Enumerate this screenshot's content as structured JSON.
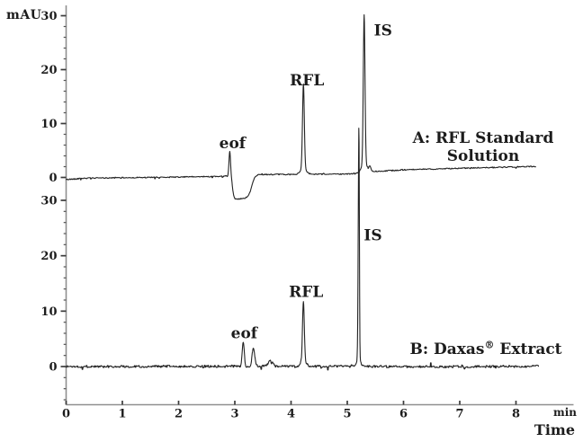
{
  "chart_data": {
    "type": "line",
    "description": "Stacked capillary electrophoresis electropherograms",
    "x": {
      "label": "Time",
      "unit": "min",
      "ticks": [
        0,
        1,
        2,
        3,
        4,
        5,
        6,
        7,
        8
      ],
      "range": [
        0,
        9
      ]
    },
    "y": {
      "label": "mAU",
      "ticks": [
        0,
        10,
        20,
        30
      ],
      "minor_step": 2,
      "range": [
        0,
        30
      ]
    },
    "panels": [
      {
        "name": "A",
        "annotation_line1": "A: RFL Standard",
        "annotation_line2": "Solution",
        "trace_end_min": 8.35,
        "noise_mau": 0.09,
        "baseline": [
          [
            0,
            -0.4
          ],
          [
            0.3,
            -0.15
          ],
          [
            1.5,
            0.0
          ],
          [
            2.5,
            0.15
          ],
          [
            2.9,
            0.2
          ],
          [
            3.35,
            0.55
          ],
          [
            4.0,
            0.55
          ],
          [
            4.6,
            0.6
          ],
          [
            5.1,
            0.65
          ],
          [
            5.45,
            1.1
          ],
          [
            6.0,
            1.4
          ],
          [
            7.0,
            1.7
          ],
          [
            8.0,
            1.95
          ],
          [
            8.35,
            2.05
          ]
        ],
        "dip": {
          "start_min": 2.96,
          "end_min": 3.3,
          "depth_mau": 4.3
        },
        "peaks": [
          {
            "label": "eof",
            "time_min": 2.91,
            "height_mau": 4.7,
            "width_min": 0.014,
            "label_dx": 3,
            "label_dy": -3
          },
          {
            "label": "RFL",
            "time_min": 4.22,
            "height_mau": 15.5,
            "width_min": 0.016,
            "foot_mau": 1.2,
            "foot_width_min": 0.05,
            "label_dx": 4,
            "label_dy": -6
          },
          {
            "label": "IS",
            "time_min": 5.3,
            "height_mau": 27.4,
            "width_min": 0.015,
            "foot_mau": 1.8,
            "foot_width_min": 0.045,
            "label_dx": 21,
            "label_dy": 12
          },
          {
            "label": "",
            "time_min": 5.4,
            "height_mau": 1.0,
            "width_min": 0.02
          }
        ]
      },
      {
        "name": "B",
        "annotation_pre": "B: Daxas",
        "annotation_sup": "®",
        "annotation_post": " Extract",
        "trace_end_min": 8.4,
        "noise_mau": 0.2,
        "baseline": [
          [
            0,
            0
          ],
          [
            3.0,
            0.05
          ],
          [
            3.45,
            0.1
          ],
          [
            4.0,
            0.0
          ],
          [
            5.0,
            0.05
          ],
          [
            6.0,
            -0.05
          ],
          [
            8.4,
            0.05
          ]
        ],
        "peaks": [
          {
            "label": "eof",
            "time_min": 3.15,
            "height_mau": 4.2,
            "width_min": 0.018,
            "label_dx": 1,
            "label_dy": -5
          },
          {
            "label": "",
            "time_min": 3.33,
            "height_mau": 3.4,
            "width_min": 0.022
          },
          {
            "label": "",
            "time_min": 3.62,
            "height_mau": 1.1,
            "width_min": 0.025
          },
          {
            "label": "",
            "time_min": 3.68,
            "height_mau": 0.7,
            "width_min": 0.015
          },
          {
            "label": "RFL",
            "time_min": 4.22,
            "height_mau": 10.8,
            "width_min": 0.016,
            "foot_mau": 1.0,
            "foot_width_min": 0.05,
            "label_dx": 3,
            "label_dy": -11
          },
          {
            "label": "IS",
            "time_min": 5.2,
            "height_mau": 25.8,
            "width_min": 0.009,
            "foot_mau": 1.5,
            "foot_width_min": 0.035,
            "label_dx": 16,
            "label_dy": 19
          },
          {
            "label": "",
            "time_min": 5.21,
            "height_mau": 25.2,
            "width_min": 0.007
          }
        ]
      }
    ]
  }
}
